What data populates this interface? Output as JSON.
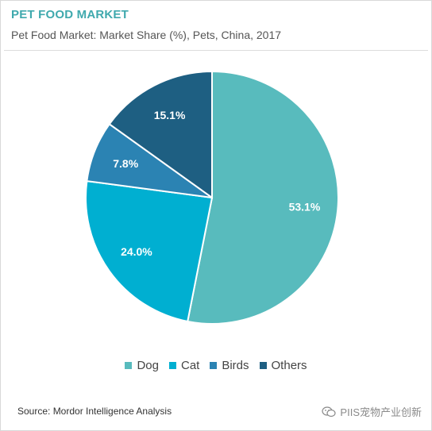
{
  "header": {
    "title": "PET FOOD MARKET",
    "subtitle": "Pet Food Market: Market Share (%), Pets, China, 2017"
  },
  "chart_data": {
    "type": "pie",
    "title": "Pet Food Market: Market Share (%), Pets, China, 2017",
    "slices": [
      {
        "name": "Dog",
        "value": 53.1,
        "label": "53.1%",
        "color": "#58bbbd"
      },
      {
        "name": "Cat",
        "value": 24.0,
        "label": "24.0%",
        "color": "#00afd1"
      },
      {
        "name": "Birds",
        "value": 7.8,
        "label": "7.8%",
        "color": "#2b83b3"
      },
      {
        "name": "Others",
        "value": 15.1,
        "label": "15.1%",
        "color": "#1e5f82"
      }
    ],
    "start": "12 o'clock",
    "direction": "clockwise",
    "legend_position": "bottom"
  },
  "legend": [
    {
      "name": "Dog",
      "color": "#58bbbd"
    },
    {
      "name": "Cat",
      "color": "#00afd1"
    },
    {
      "name": "Birds",
      "color": "#2b83b3"
    },
    {
      "name": "Others",
      "color": "#1e5f82"
    }
  ],
  "footer": {
    "source": "Source: Mordor Intelligence Analysis",
    "watermark": "PIIS宠物产业创新",
    "watermark_icon": "wechat-icon"
  }
}
